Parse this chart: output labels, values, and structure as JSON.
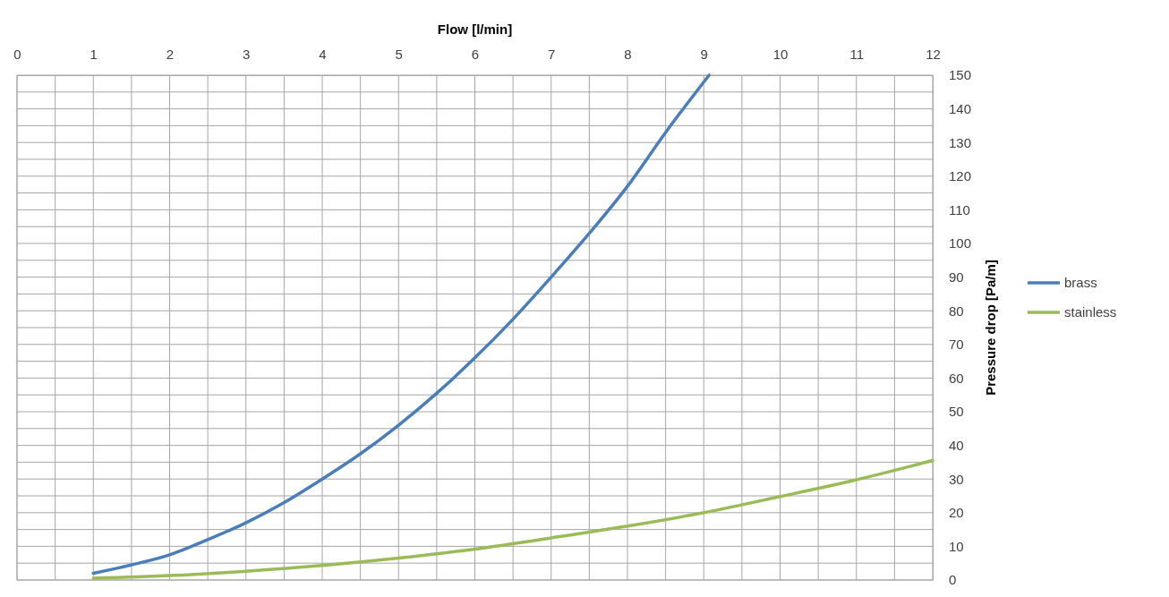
{
  "chart_data": {
    "type": "line",
    "xlabel": "Flow [l/min]",
    "ylabel": "Pressure drop [Pa/m]",
    "xlim": [
      0,
      12
    ],
    "xticks": [
      0,
      {
        "value": 0.5,
        "label": null
      },
      1,
      {
        "value": 1.5,
        "label": null
      },
      2,
      {
        "value": 2.5,
        "label": null
      },
      3,
      {
        "value": 3.5,
        "label": null
      },
      4,
      {
        "value": 4.5,
        "label": null
      },
      5,
      {
        "value": 5.5,
        "label": null
      },
      6,
      {
        "value": 6.5,
        "label": null
      },
      7,
      {
        "value": 7.5,
        "label": null
      },
      8,
      {
        "value": 8.5,
        "label": null
      },
      9,
      {
        "value": 9.5,
        "label": null
      },
      10,
      {
        "value": 10.5,
        "label": null
      },
      11,
      {
        "value": 11.5,
        "label": null
      },
      12
    ],
    "ylim": [
      0,
      150
    ],
    "yticks": [
      0,
      {
        "value": 5,
        "label": null
      },
      10,
      {
        "value": 15,
        "label": null
      },
      20,
      {
        "value": 25,
        "label": null
      },
      30,
      {
        "value": 35,
        "label": null
      },
      40,
      {
        "value": 45,
        "label": null
      },
      50,
      {
        "value": 55,
        "label": null
      },
      60,
      {
        "value": 65,
        "label": null
      },
      70,
      {
        "value": 75,
        "label": null
      },
      80,
      {
        "value": 85,
        "label": null
      },
      90,
      {
        "value": 95,
        "label": null
      },
      100,
      {
        "value": 105,
        "label": null
      },
      110,
      {
        "value": 115,
        "label": null
      },
      120,
      {
        "value": 125,
        "label": null
      },
      130,
      {
        "value": 135,
        "label": null
      },
      140,
      {
        "value": 145,
        "label": null
      },
      150
    ],
    "grid": true,
    "legend": "right",
    "marker": "none",
    "line_style": "solid",
    "series": [
      {
        "name": "brass",
        "color": "#4a7ebb",
        "x": [
          1,
          1.5,
          2,
          2.5,
          3,
          3.5,
          4,
          4.5,
          5,
          5.5,
          6,
          6.5,
          7,
          7.5,
          8,
          8.5,
          9.07
        ],
        "values": [
          2,
          4.5,
          7.5,
          12,
          17,
          23,
          30,
          37.5,
          46,
          55.5,
          66,
          77.5,
          90,
          103,
          117,
          133,
          150
        ]
      },
      {
        "name": "stainless",
        "color": "#9bbb59",
        "x": [
          1,
          2,
          3,
          4,
          5,
          6,
          7,
          8,
          9,
          10,
          11,
          12
        ],
        "values": [
          0.5,
          1.3,
          2.6,
          4.3,
          6.5,
          9.2,
          12.5,
          16,
          20,
          24.8,
          29.8,
          35.5
        ]
      }
    ]
  }
}
